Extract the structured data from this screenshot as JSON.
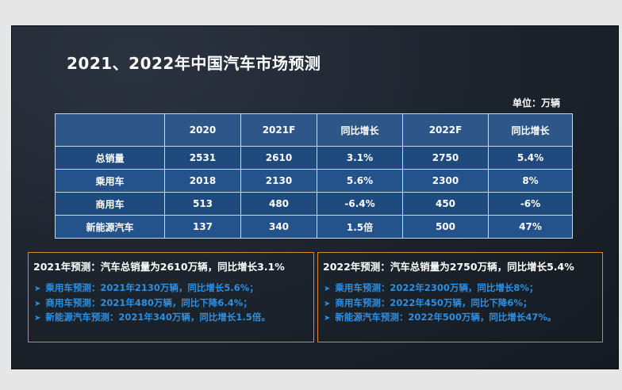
{
  "title": "2021、2022年中国汽车市场预测",
  "unit": "单位：万辆",
  "table": {
    "headers": [
      "",
      "2020",
      "2021F",
      "同比增长",
      "2022F",
      "同比增长"
    ],
    "rows": [
      [
        "总销量",
        "2531",
        "2610",
        "3.1%",
        "2750",
        "5.4%"
      ],
      [
        "乘用车",
        "2018",
        "2130",
        "5.6%",
        "2300",
        "8%"
      ],
      [
        "商用车",
        "513",
        "480",
        "-6.4%",
        "450",
        "-6%"
      ],
      [
        "新能源汽车",
        "137",
        "340",
        "1.5倍",
        "500",
        "47%"
      ]
    ]
  },
  "box_2021": {
    "heading": "2021年预测：汽车总销量为2610万辆，同比增长3.1%",
    "items": [
      "乘用车预测：2021年2130万辆，同比增长5.6%；",
      "商用车预测：2021年480万辆，同比下降6.4%；",
      "新能源汽车预测：2021年340万辆，同比增长1.5倍。"
    ]
  },
  "box_2022": {
    "heading": "2022年预测：汽车总销量为2750万辆，同比增长5.4%",
    "items": [
      "乘用车预测：2022年2300万辆，同比增长8%；",
      "商用车预测：2022年450万辆，同比下降6%；",
      "新能源汽车预测：2022年500万辆，同比增长47%。"
    ]
  },
  "bullet_symbol": "➤",
  "colors": {
    "slide_bg": "#1b232c",
    "table_header": "#2e5687",
    "table_row": "#1f4a7e",
    "box_border": "#d88a2b",
    "bullet_text": "#2f8fe0"
  }
}
